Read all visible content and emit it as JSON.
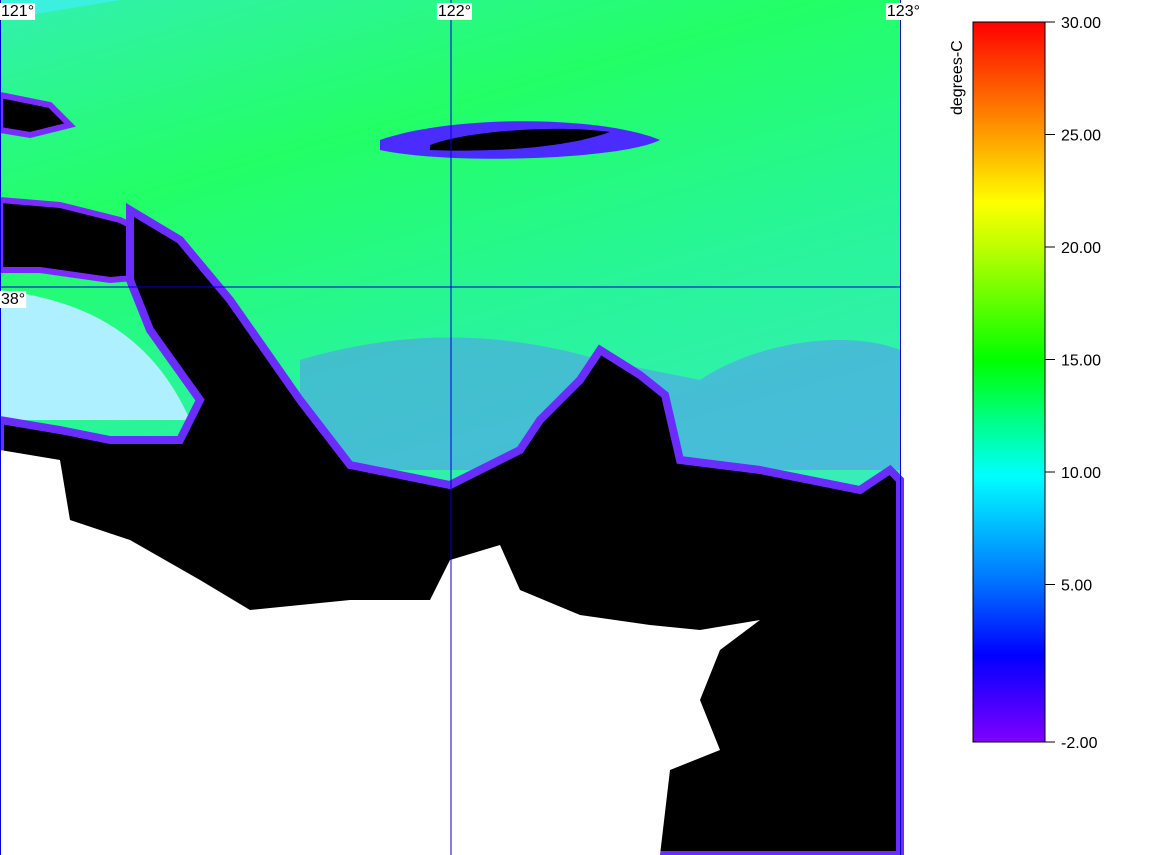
{
  "map": {
    "lon_labels": [
      "121°",
      "122°",
      "123°"
    ],
    "lat_labels": [
      "38°"
    ]
  },
  "colorbar": {
    "label": "degrees-C",
    "range": [
      -2,
      30
    ],
    "ticks": [
      {
        "value": 30,
        "label": "30.00"
      },
      {
        "value": 25,
        "label": "25.00"
      },
      {
        "value": 20,
        "label": "20.00"
      },
      {
        "value": 15,
        "label": "15.00"
      },
      {
        "value": 10,
        "label": "10.00"
      },
      {
        "value": 5,
        "label": "5.00"
      },
      {
        "value": -2,
        "label": "-2.00"
      }
    ]
  }
}
